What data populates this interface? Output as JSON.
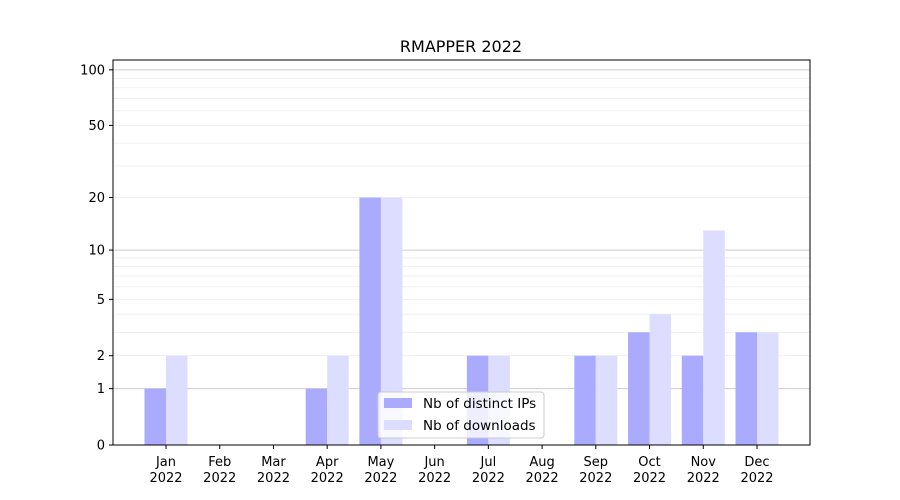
{
  "chart_data": {
    "type": "bar",
    "title": "RMAPPER 2022",
    "xlabel": "",
    "ylabel": "",
    "yscale": "log(1+y)",
    "ylim": [
      0,
      113
    ],
    "yticks": [
      0,
      1,
      2,
      5,
      10,
      20,
      50,
      100
    ],
    "ytick_labels": [
      "0",
      "1",
      "2",
      "5",
      "10",
      "20",
      "50",
      "100"
    ],
    "grid": true,
    "legend_position": "bottom-center",
    "categories": [
      "Jan\n2022",
      "Feb\n2022",
      "Mar\n2022",
      "Apr\n2022",
      "May\n2022",
      "Jun\n2022",
      "Jul\n2022",
      "Aug\n2022",
      "Sep\n2022",
      "Oct\n2022",
      "Nov\n2022",
      "Dec\n2022"
    ],
    "series": [
      {
        "name": "Nb of distinct IPs",
        "color": "#aaaaff",
        "values": [
          1,
          0,
          0,
          1,
          20,
          0,
          2,
          0,
          2,
          3,
          2,
          3
        ]
      },
      {
        "name": "Nb of downloads",
        "color": "#ddddff",
        "values": [
          2,
          0,
          0,
          2,
          20,
          0,
          2,
          0,
          2,
          4,
          13,
          3
        ]
      }
    ]
  }
}
